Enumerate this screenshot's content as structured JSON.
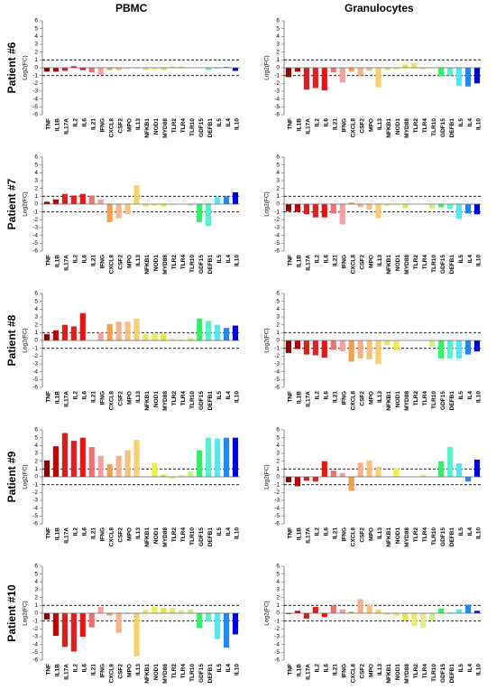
{
  "titles": {
    "left": "PBMC",
    "right": "Granulocytes"
  },
  "patient_labels": [
    "Patient #6",
    "Patient #7",
    "Patient #8",
    "Patient #9",
    "Patient #10"
  ],
  "chart_data": {
    "type": "bar",
    "ylabel": "Log2(FC)",
    "ylim": [
      -6,
      6
    ],
    "yticks": [
      6,
      5,
      4,
      3,
      2,
      1,
      0,
      -1,
      -2,
      -3,
      -4,
      -5,
      -6
    ],
    "threshold_lines": [
      1,
      -1
    ],
    "categories": [
      "TNF",
      "IL1B",
      "IL17A",
      "IL2",
      "IL6",
      "IL21",
      "IFNG",
      "CXCL8",
      "CSF2",
      "MPO",
      "IL13",
      "NFKB1",
      "NOD1",
      "MYD88",
      "TLR2",
      "TLR4",
      "TLR10",
      "GDF15",
      "DEFB1",
      "IL5",
      "IL4",
      "IL10"
    ],
    "bar_colors": [
      "#8b0000",
      "#c00000",
      "#d42020",
      "#e02020",
      "#ee1111",
      "#f07070",
      "#f5a0a0",
      "#f0a050",
      "#f5b08a",
      "#f5c080",
      "#f5d070",
      "#f0e060",
      "#eeee50",
      "#e6e640",
      "#eaea70",
      "#e6ea90",
      "#ccf088",
      "#33ee66",
      "#55f0cc",
      "#55e6f5",
      "#2288ee",
      "#0000dd"
    ],
    "panels": [
      {
        "patient": "Patient #6",
        "cell_type": "PBMC",
        "values": [
          -0.5,
          -0.5,
          -0.4,
          0.2,
          -0.3,
          -0.6,
          -0.9,
          -0.3,
          -0.3,
          -0.1,
          -0.1,
          -0.3,
          -0.2,
          -0.3,
          0.2,
          0.2,
          0.0,
          0.0,
          -0.3,
          -0.1,
          0.1,
          -0.4
        ]
      },
      {
        "patient": "Patient #6",
        "cell_type": "Granulocytes",
        "values": [
          -1.2,
          -0.5,
          -2.8,
          -2.6,
          -2.9,
          -0.6,
          -1.9,
          -0.5,
          -1.0,
          -0.4,
          -2.5,
          -0.3,
          -0.2,
          0.4,
          0.6,
          -0.2,
          -0.1,
          -1.1,
          -1.0,
          -2.3,
          -2.4,
          -2.0
        ]
      },
      {
        "patient": "Patient #7",
        "cell_type": "PBMC",
        "values": [
          0.3,
          0.6,
          1.3,
          1.1,
          1.3,
          1.1,
          0.6,
          -2.3,
          -1.8,
          -1.3,
          2.4,
          -0.3,
          -0.2,
          -0.3,
          -0.1,
          0.0,
          -0.2,
          -2.3,
          -2.8,
          0.9,
          1.0,
          1.5
        ]
      },
      {
        "patient": "Patient #7",
        "cell_type": "Granulocytes",
        "values": [
          -0.9,
          -1.0,
          -1.3,
          -1.7,
          -1.7,
          -1.2,
          -2.6,
          0.2,
          -0.4,
          -0.7,
          -1.8,
          -0.2,
          -0.1,
          -0.5,
          0.0,
          0.0,
          -0.6,
          -0.4,
          -0.6,
          -1.9,
          -1.2,
          -1.3
        ]
      },
      {
        "patient": "Patient #8",
        "cell_type": "PBMC",
        "values": [
          0.8,
          1.3,
          2.0,
          1.8,
          3.5,
          0.0,
          1.0,
          2.1,
          2.4,
          2.4,
          2.8,
          0.8,
          0.8,
          0.8,
          0.2,
          0.1,
          0.3,
          2.8,
          2.5,
          2.0,
          1.6,
          1.9
        ]
      },
      {
        "patient": "Patient #8",
        "cell_type": "Granulocytes",
        "values": [
          -1.6,
          -1.1,
          -1.8,
          -1.9,
          -2.2,
          -1.2,
          -1.4,
          -2.7,
          -2.3,
          -2.4,
          -3.0,
          -0.6,
          -1.3,
          0.0,
          0.0,
          0.0,
          -0.8,
          -2.3,
          -2.3,
          -2.3,
          -1.8,
          -1.4
        ]
      },
      {
        "patient": "Patient #9",
        "cell_type": "PBMC",
        "values": [
          2.1,
          3.9,
          5.6,
          4.6,
          5.0,
          3.8,
          2.7,
          1.6,
          2.7,
          3.4,
          4.7,
          0.0,
          1.8,
          0.3,
          -0.2,
          0.2,
          0.7,
          3.4,
          5.0,
          4.9,
          5.0,
          5.0
        ]
      },
      {
        "patient": "Patient #9",
        "cell_type": "Granulocytes",
        "values": [
          -0.7,
          -1.2,
          -0.5,
          -0.6,
          2.0,
          0.8,
          0.5,
          -1.8,
          1.8,
          2.1,
          1.3,
          0.0,
          1.1,
          0.0,
          0.0,
          0.3,
          0.0,
          2.0,
          3.8,
          1.7,
          -0.6,
          2.2
        ]
      },
      {
        "patient": "Patient #10",
        "cell_type": "PBMC",
        "values": [
          -0.8,
          -2.9,
          -4.3,
          -4.9,
          -3.0,
          -1.8,
          0.8,
          -0.3,
          -2.5,
          -0.1,
          -5.5,
          0.4,
          0.8,
          0.7,
          0.7,
          0.4,
          0.5,
          -1.9,
          -1.1,
          -3.3,
          -4.4,
          -2.7
        ]
      },
      {
        "patient": "Patient #10",
        "cell_type": "Granulocytes",
        "values": [
          -0.1,
          0.3,
          -0.7,
          0.8,
          -0.5,
          1.0,
          0.5,
          0.2,
          1.8,
          1.1,
          0.5,
          -0.2,
          -0.3,
          -0.9,
          -1.6,
          -1.9,
          -0.9,
          0.6,
          0.1,
          0.5,
          1.1,
          0.3
        ]
      }
    ]
  }
}
